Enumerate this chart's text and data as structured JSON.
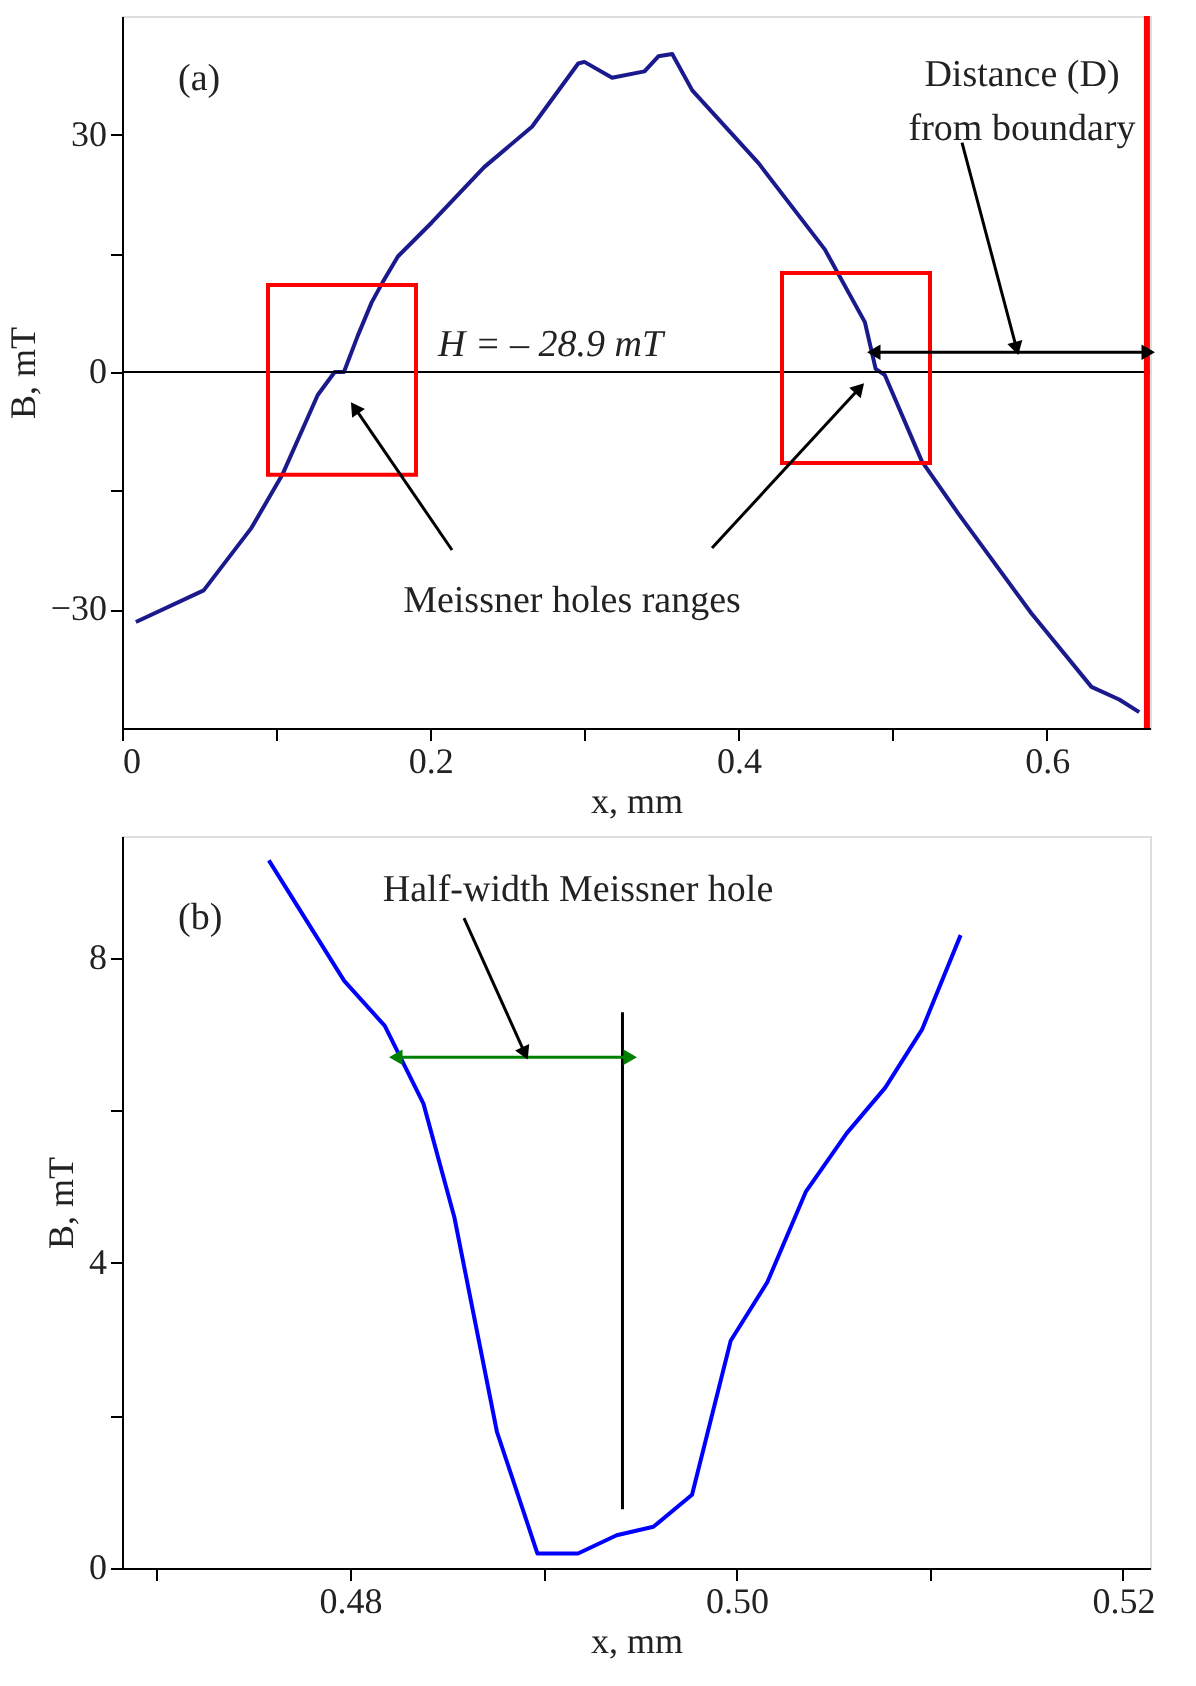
{
  "chart_data": [
    {
      "type": "line",
      "xlabel": "x, mm",
      "ylabel": "B, mT",
      "xlim": [
        0,
        0.667
      ],
      "ylim": [
        -45,
        45
      ],
      "xticks": [
        0,
        {
          "value": 0.1,
          "label": null
        },
        {
          "value": 0.2,
          "label": "0.2"
        },
        {
          "value": 0.3,
          "label": null
        },
        {
          "value": 0.4,
          "label": "0.4"
        },
        {
          "value": 0.5,
          "label": null
        },
        {
          "value": 0.6,
          "label": "0.6"
        }
      ],
      "yticks": [
        {
          "value": -30,
          "label": "−30"
        },
        {
          "value": -15,
          "label": null
        },
        0,
        {
          "value": 15,
          "label": null
        },
        30
      ],
      "grid": false,
      "legend": false,
      "marker": "none",
      "line_style": "solid",
      "series": [
        {
          "color": "#1a1a8c",
          "x": [
            0.009,
            0.053,
            0.084,
            0.104,
            0.127,
            0.138,
            0.144,
            0.153,
            0.162,
            0.169,
            0.179,
            0.201,
            0.235,
            0.266,
            0.296,
            0.3,
            0.318,
            0.339,
            0.348,
            0.357,
            0.37,
            0.413,
            0.456,
            0.482,
            0.489,
            0.495,
            0.519,
            0.543,
            0.59,
            0.629,
            0.647,
            0.66
          ],
          "values": [
            -31.6,
            -27.6,
            -19.7,
            -13,
            -2.9,
            0,
            0,
            4.6,
            8.8,
            11.3,
            14.6,
            18.9,
            25.9,
            31,
            39,
            39.2,
            37.2,
            38,
            39.9,
            40.2,
            35.6,
            26.4,
            15.5,
            6.3,
            0.4,
            -0.4,
            -11.3,
            -18,
            -30.5,
            -39.8,
            -41.4,
            -43
          ]
        }
      ],
      "ref_lines": [
        {
          "axis": "y",
          "value": 0,
          "label": "H = – 28.9 mT",
          "color": "#000000"
        },
        {
          "axis": "x",
          "value": 0.665,
          "color": "#ff0000"
        }
      ],
      "annotations": [
        "(a)",
        "Distance (D)\nfrom boundary",
        "Meissner holes ranges"
      ]
    },
    {
      "type": "line",
      "xlabel": "x, mm",
      "ylabel": "B, mT",
      "xlim": [
        0.4682,
        0.5214
      ],
      "ylim": [
        0,
        9.6
      ],
      "xticks": [
        {
          "value": 0.47,
          "label": null
        },
        {
          "value": 0.48,
          "label": "0.48"
        },
        {
          "value": 0.49,
          "label": null
        },
        {
          "value": 0.5,
          "label": "0.50"
        },
        {
          "value": 0.51,
          "label": null
        },
        {
          "value": 0.52,
          "label": "0.52"
        }
      ],
      "yticks": [
        0,
        {
          "value": 2,
          "label": null
        },
        4,
        {
          "value": 6,
          "label": null
        },
        8
      ],
      "grid": false,
      "legend": false,
      "marker": "none",
      "line_style": "solid",
      "series": [
        {
          "color": "#0000ff",
          "x": [
            0.4758,
            0.4797,
            0.4818,
            0.4838,
            0.4854,
            0.4876,
            0.4897,
            0.4918,
            0.4938,
            0.4957,
            0.4977,
            0.4997,
            0.5016,
            0.5036,
            0.5057,
            0.5077,
            0.5096,
            0.5116
          ],
          "values": [
            9.28,
            7.7,
            7.11,
            6.09,
            4.6,
            1.79,
            0.19,
            0.19,
            0.43,
            0.54,
            0.96,
            2.98,
            3.75,
            4.94,
            5.7,
            6.3,
            7.06,
            8.3
          ]
        }
      ],
      "ref_lines": [
        {
          "axis": "x",
          "value": 0.4941,
          "color": "#000000"
        }
      ],
      "annotations": [
        "(b)",
        "Half-width Meissner hole"
      ]
    }
  ]
}
